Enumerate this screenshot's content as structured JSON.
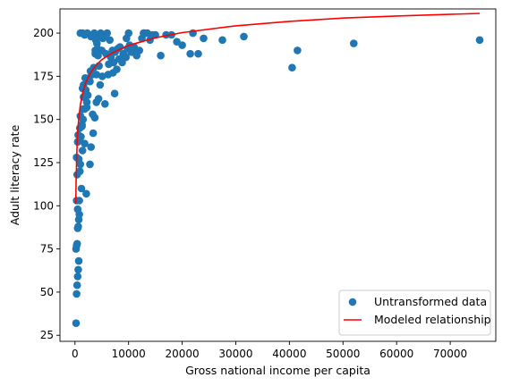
{
  "chart_data": {
    "type": "scatter",
    "xlabel": "Gross national income per capita",
    "ylabel": "Adult literacy rate",
    "xlim": [
      -2800,
      78500
    ],
    "ylim": [
      21.5,
      214
    ],
    "xticks": [
      0,
      10000,
      20000,
      30000,
      40000,
      50000,
      60000,
      70000
    ],
    "yticks": [
      25,
      50,
      75,
      100,
      125,
      150,
      175,
      200
    ],
    "legend_position": "lower-right",
    "grid": false,
    "colors": {
      "scatter": "#1f77b4",
      "line": "#ff0000",
      "axes": "#000000",
      "legend_border": "#cccccc"
    },
    "series": [
      {
        "name": "Untransformed data",
        "type": "scatter",
        "x": [
          200,
          300,
          400,
          500,
          600,
          700,
          200,
          300,
          400,
          500,
          600,
          700,
          800,
          500,
          300,
          800,
          1200,
          400,
          900,
          1000,
          700,
          300,
          500,
          1100,
          900,
          1300,
          1500,
          1800,
          2200,
          2400,
          1600,
          1900,
          1400,
          2000,
          2800,
          3200,
          1300,
          1100,
          1800,
          600,
          1000,
          1500,
          1600,
          2000,
          2600,
          2900,
          3500,
          4000,
          4500,
          3800,
          4200,
          5000,
          1400,
          1800,
          3000,
          3600,
          3900,
          4100,
          5500,
          6000,
          6500,
          7000,
          7500,
          8000,
          8500,
          9000,
          9500,
          10000,
          11000,
          12000,
          12500,
          13000,
          14000,
          15000,
          16000,
          18000,
          19000,
          20000,
          22000,
          23000,
          24000,
          1000,
          1800,
          2300,
          3400,
          4800,
          5200,
          5800,
          6300,
          7100,
          8200,
          9200,
          9800,
          10500,
          11500,
          12800,
          14500,
          17000,
          21500,
          27500,
          31500,
          40500,
          41500,
          52000,
          75500,
          900,
          1400,
          2200,
          3000,
          3300,
          3700,
          4000,
          4400,
          4700,
          5100,
          5600,
          6200,
          6800,
          7400,
          7800,
          8400,
          8800,
          9600,
          10200,
          11200,
          13500,
          4300,
          3800,
          4600,
          5400,
          6700,
          7200,
          3400,
          2800,
          2100
        ],
        "y": [
          32,
          49,
          54,
          59,
          63,
          68,
          75,
          77,
          78,
          87,
          88,
          92,
          95,
          98,
          103,
          103,
          110,
          118,
          120,
          124,
          127,
          128,
          137,
          140,
          145,
          147,
          150,
          156,
          160,
          164,
          170,
          174,
          168,
          167,
          172,
          176,
          146,
          140,
          136,
          141,
          152,
          156,
          163,
          167,
          174,
          178,
          180,
          176,
          181,
          188,
          191,
          190,
          200,
          199,
          198,
          200,
          196,
          194,
          198,
          200,
          196,
          190,
          189,
          191,
          185,
          188,
          186,
          200,
          192,
          190,
          197,
          200,
          196,
          199,
          187,
          199,
          195,
          193,
          200,
          188,
          197,
          200,
          199,
          200,
          198,
          200,
          197,
          188,
          182,
          177,
          185,
          187,
          191,
          189,
          187,
          200,
          199,
          199,
          188,
          196,
          198,
          180,
          190,
          194,
          196,
          138,
          132,
          157,
          134,
          153,
          151,
          160,
          162,
          170,
          175,
          159,
          176,
          183,
          165,
          179,
          192,
          183,
          197,
          193,
          189,
          200,
          187,
          190,
          198,
          199,
          186,
          183,
          142,
          124,
          107
        ]
      },
      {
        "name": "Modeled relationship",
        "type": "line",
        "x": [
          150,
          200,
          300,
          400,
          500,
          700,
          1000,
          1500,
          2000,
          3000,
          4000,
          5000,
          7000,
          10000,
          15000,
          20000,
          30000,
          40000,
          50000,
          60000,
          75500
        ],
        "y": [
          101.2,
          113.2,
          126.5,
          136.4,
          142.7,
          150.5,
          158.5,
          166.3,
          171.3,
          177.5,
          181.6,
          184.6,
          188.6,
          192.9,
          197.3,
          200.3,
          204.2,
          206.8,
          208.7,
          209.9,
          211.4
        ]
      }
    ]
  }
}
